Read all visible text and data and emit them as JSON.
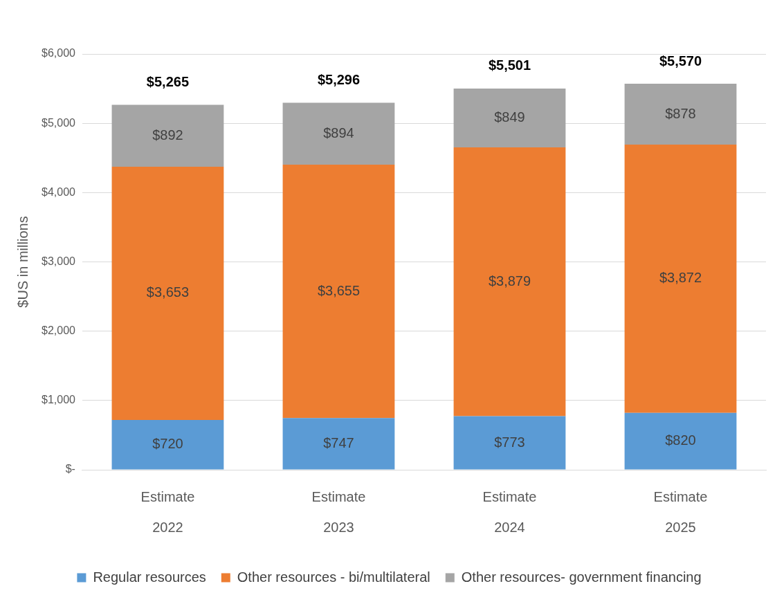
{
  "chart_data": {
    "type": "bar",
    "stacked": true,
    "ylabel": "$US in millions",
    "categories": [
      "Estimate\n2022",
      "Estimate\n2023",
      "Estimate\n2024",
      "Estimate\n2025"
    ],
    "series": [
      {
        "name": "Regular resources",
        "color": "#5b9bd5",
        "values": [
          720,
          747,
          773,
          820
        ],
        "value_labels": [
          "$720",
          "$747",
          "$773",
          "$820"
        ]
      },
      {
        "name": "Other resources - bi/multilateral",
        "color": "#ed7d31",
        "values": [
          3653,
          3655,
          3879,
          3872
        ],
        "value_labels": [
          "$3,653",
          "$3,655",
          "$3,879",
          "$3,872"
        ]
      },
      {
        "name": "Other resources- government financing",
        "color": "#a5a5a5",
        "values": [
          892,
          894,
          849,
          878
        ],
        "value_labels": [
          "$892",
          "$894",
          "$849",
          "$878"
        ]
      }
    ],
    "totals": [
      "$5,265",
      "$5,296",
      "$5,501",
      "$5,570"
    ],
    "ylim": [
      0,
      6000
    ],
    "yticks": [
      {
        "value": 0,
        "label": "$-"
      },
      {
        "value": 1000,
        "label": "$1,000"
      },
      {
        "value": 2000,
        "label": "$2,000"
      },
      {
        "value": 3000,
        "label": "$3,000"
      },
      {
        "value": 4000,
        "label": "$4,000"
      },
      {
        "value": 5000,
        "label": "$5,000"
      },
      {
        "value": 6000,
        "label": "$6,000"
      }
    ],
    "grid": "y",
    "legend": "bottom"
  }
}
